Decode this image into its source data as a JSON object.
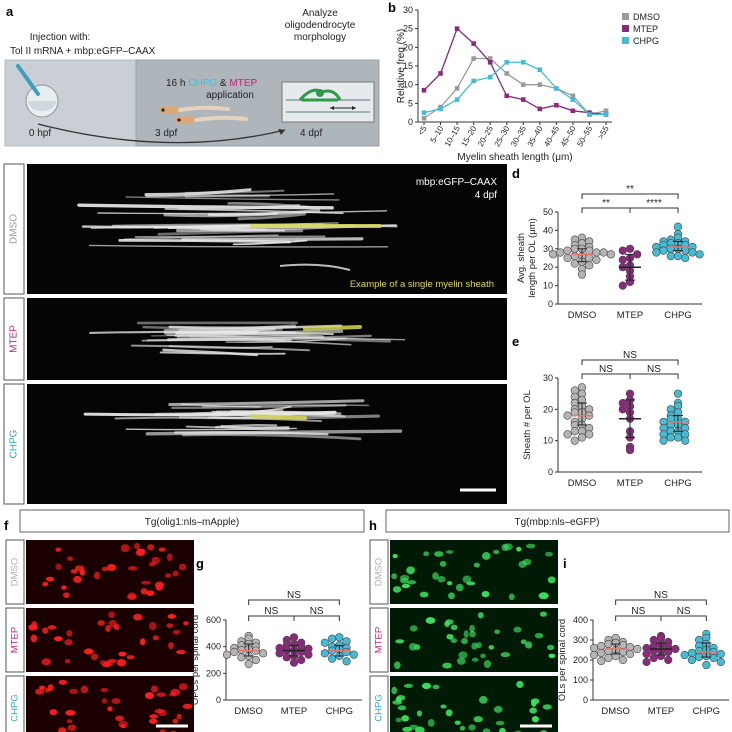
{
  "panels": {
    "a": {
      "letter": "a",
      "injection_line1": "Injection with:",
      "injection_line2": "Tol II mRNA + mbp:eGFP–CAAX",
      "treat_prefix": "16 h ",
      "treat_chpg": "CHPG",
      "treat_amp": " & ",
      "treat_mtep": "MTEP",
      "treat_line2": "application",
      "analyze_line1": "Analyze",
      "analyze_line2": "oligodendrocyte",
      "analyze_line3": "morphology",
      "t0": "0 hpf",
      "t1": "3 dpf",
      "t2": "4 dpf"
    },
    "c": {
      "letter": "c",
      "reporter": "mbp:eGFP–CAAX",
      "stage": "4 dpf",
      "annotation": "Example of a single myelin sheath",
      "rows": [
        {
          "label": "DMSO",
          "color": "#9a9a9a"
        },
        {
          "label": "MTEP",
          "color": "#c2237f"
        },
        {
          "label": "CHPG",
          "color": "#2aa7c9"
        }
      ]
    },
    "f": {
      "letter": "f",
      "title": "Tg(olig1:nls–mApple)",
      "rows": [
        {
          "label": "DMSO",
          "color": "#b0b0b0"
        },
        {
          "label": "MTEP",
          "color": "#c2237f"
        },
        {
          "label": "CHPG",
          "color": "#2aa7c9"
        }
      ]
    },
    "h": {
      "letter": "h",
      "title": "Tg(mbp:nls–eGFP)",
      "rows": [
        {
          "label": "DMSO",
          "color": "#b0b0b0"
        },
        {
          "label": "MTEP",
          "color": "#c2237f"
        },
        {
          "label": "CHPG",
          "color": "#2aa7c9"
        }
      ]
    }
  },
  "colors": {
    "DMSO": "#9a9a9a",
    "MTEP": "#8b2a7d",
    "CHPG": "#45bcd6",
    "median": "#e8766c"
  },
  "chart_data": [
    {
      "id": "b",
      "letter": "b",
      "type": "line",
      "xlabel": "Myelin sheath length (μm)",
      "ylabel": "Relative freq (%)",
      "ylim": [
        0,
        30
      ],
      "yticks": [
        0,
        5,
        10,
        15,
        20,
        25,
        30
      ],
      "categories": [
        "<5",
        "5–10",
        "10–15",
        "15–20",
        "20–25",
        "25–30",
        "30–35",
        "35–40",
        "40–45",
        "45–50",
        "50–55",
        ">55"
      ],
      "legend_position": "top-right",
      "series": [
        {
          "name": "DMSO",
          "color": "#9a9a9a",
          "values": [
            1,
            4,
            9,
            17,
            17,
            13,
            10,
            10,
            9,
            7,
            2,
            3
          ]
        },
        {
          "name": "MTEP",
          "color": "#8b2a7d",
          "values": [
            8.5,
            13,
            25,
            21,
            16,
            7,
            6,
            3.5,
            4.5,
            3,
            2.5,
            2
          ]
        },
        {
          "name": "CHPG",
          "color": "#45bcd6",
          "values": [
            2.5,
            3.5,
            6,
            11,
            12,
            16,
            16,
            14,
            9,
            6,
            2,
            2
          ]
        }
      ]
    },
    {
      "id": "d",
      "letter": "d",
      "type": "scatter",
      "ylabel_line1": "Avg. sheath",
      "ylabel_line2": "length per OL (μm)",
      "ylim": [
        0,
        50
      ],
      "yticks": [
        0,
        10,
        20,
        30,
        40,
        50
      ],
      "categories": [
        "DMSO",
        "MTEP",
        "CHPG"
      ],
      "series": [
        {
          "name": "DMSO",
          "color": "#b5b5b5",
          "mean": 27,
          "err": [
            23,
            30
          ],
          "values": [
            36,
            35,
            34,
            33,
            32,
            31,
            30,
            30,
            29,
            29,
            28,
            28,
            28,
            27,
            27,
            26,
            26,
            25,
            25,
            24,
            23,
            22,
            21,
            19,
            16
          ]
        },
        {
          "name": "MTEP",
          "color": "#8b2a7d",
          "mean": 20,
          "err": [
            13,
            27
          ],
          "values": [
            30,
            29,
            27,
            25,
            24,
            21,
            20,
            18,
            15,
            12,
            10
          ]
        },
        {
          "name": "CHPG",
          "color": "#45bcd6",
          "mean": 31,
          "err": [
            29,
            34
          ],
          "values": [
            42,
            38,
            36,
            35,
            34,
            34,
            33,
            33,
            32,
            32,
            31,
            31,
            30,
            30,
            29,
            29,
            28,
            28,
            27,
            26,
            26,
            25
          ]
        }
      ],
      "brackets": [
        {
          "from": 0,
          "to": 2,
          "label": "**",
          "level": 2
        },
        {
          "from": 0,
          "to": 1,
          "label": "**",
          "level": 1
        },
        {
          "from": 1,
          "to": 2,
          "label": "****",
          "level": 1
        }
      ]
    },
    {
      "id": "e",
      "letter": "e",
      "type": "scatter",
      "ylabel_line1": "Sheath # per OL",
      "ylabel_line2": "",
      "ylim": [
        0,
        30
      ],
      "yticks": [
        0,
        10,
        20,
        30
      ],
      "categories": [
        "DMSO",
        "MTEP",
        "CHPG"
      ],
      "series": [
        {
          "name": "DMSO",
          "color": "#b5b5b5",
          "mean": 18,
          "err": [
            15,
            22
          ],
          "values": [
            27,
            26,
            25,
            24,
            23,
            22,
            21,
            20,
            20,
            19,
            19,
            18,
            18,
            17,
            16,
            15,
            15,
            14,
            13,
            13,
            12,
            12,
            11,
            10
          ]
        },
        {
          "name": "MTEP",
          "color": "#8b2a7d",
          "mean": 17,
          "err": [
            11,
            23
          ],
          "values": [
            25,
            23,
            22,
            21,
            20,
            19,
            17,
            13,
            11,
            8,
            7
          ]
        },
        {
          "name": "CHPG",
          "color": "#45bcd6",
          "mean": 16,
          "err": [
            13,
            18
          ],
          "values": [
            25,
            22,
            21,
            20,
            19,
            18,
            17,
            17,
            16,
            16,
            15,
            15,
            14,
            14,
            13,
            13,
            12,
            12,
            11,
            11,
            10,
            10
          ]
        }
      ],
      "brackets": [
        {
          "from": 0,
          "to": 2,
          "label": "NS",
          "level": 2
        },
        {
          "from": 0,
          "to": 1,
          "label": "NS",
          "level": 1
        },
        {
          "from": 1,
          "to": 2,
          "label": "NS",
          "level": 1
        }
      ]
    },
    {
      "id": "g",
      "letter": "g",
      "type": "scatter",
      "ylabel_line1": "OPCs per spinal cord",
      "ylabel_line2": "",
      "ylim": [
        0,
        600
      ],
      "yticks": [
        0,
        200,
        400,
        600
      ],
      "categories": [
        "DMSO",
        "MTEP",
        "CHPG"
      ],
      "series": [
        {
          "name": "DMSO",
          "color": "#b5b5b5",
          "mean": 370,
          "err": [
            330,
            420
          ],
          "values": [
            480,
            460,
            440,
            430,
            420,
            410,
            400,
            390,
            380,
            375,
            370,
            360,
            350,
            340,
            330,
            320,
            300,
            270
          ]
        },
        {
          "name": "MTEP",
          "color": "#8b2a7d",
          "mean": 370,
          "err": [
            330,
            410
          ],
          "values": [
            470,
            450,
            430,
            420,
            410,
            400,
            390,
            385,
            375,
            370,
            360,
            350,
            340,
            330,
            320,
            300,
            280
          ]
        },
        {
          "name": "CHPG",
          "color": "#45bcd6",
          "mean": 370,
          "err": [
            330,
            410
          ],
          "values": [
            470,
            460,
            440,
            430,
            410,
            400,
            390,
            380,
            370,
            360,
            350,
            340,
            330,
            310,
            290
          ]
        }
      ],
      "brackets": [
        {
          "from": 0,
          "to": 2,
          "label": "NS",
          "level": 2
        },
        {
          "from": 0,
          "to": 1,
          "label": "NS",
          "level": 1
        },
        {
          "from": 1,
          "to": 2,
          "label": "NS",
          "level": 1
        }
      ]
    },
    {
      "id": "i",
      "letter": "i",
      "type": "scatter",
      "ylabel_line1": "OLs per spinal cord",
      "ylabel_line2": "",
      "ylim": [
        0,
        400
      ],
      "yticks": [
        0,
        100,
        200,
        300,
        400
      ],
      "categories": [
        "DMSO",
        "MTEP",
        "CHPG"
      ],
      "series": [
        {
          "name": "DMSO",
          "color": "#b5b5b5",
          "mean": 255,
          "err": [
            230,
            280
          ],
          "values": [
            310,
            300,
            290,
            285,
            280,
            275,
            270,
            265,
            260,
            255,
            250,
            245,
            240,
            235,
            230,
            225,
            220,
            210,
            200,
            195
          ]
        },
        {
          "name": "MTEP",
          "color": "#8b2a7d",
          "mean": 255,
          "err": [
            225,
            285
          ],
          "values": [
            320,
            310,
            300,
            290,
            280,
            270,
            265,
            260,
            255,
            250,
            245,
            240,
            230,
            220,
            210,
            200,
            190
          ]
        },
        {
          "name": "CHPG",
          "color": "#45bcd6",
          "mean": 240,
          "err": [
            215,
            285
          ],
          "values": [
            330,
            310,
            300,
            280,
            270,
            260,
            250,
            245,
            240,
            235,
            230,
            225,
            220,
            215,
            210,
            200,
            190,
            175
          ]
        }
      ],
      "brackets": [
        {
          "from": 0,
          "to": 2,
          "label": "NS",
          "level": 2
        },
        {
          "from": 0,
          "to": 1,
          "label": "NS",
          "level": 1
        },
        {
          "from": 1,
          "to": 2,
          "label": "NS",
          "level": 1
        }
      ]
    }
  ]
}
